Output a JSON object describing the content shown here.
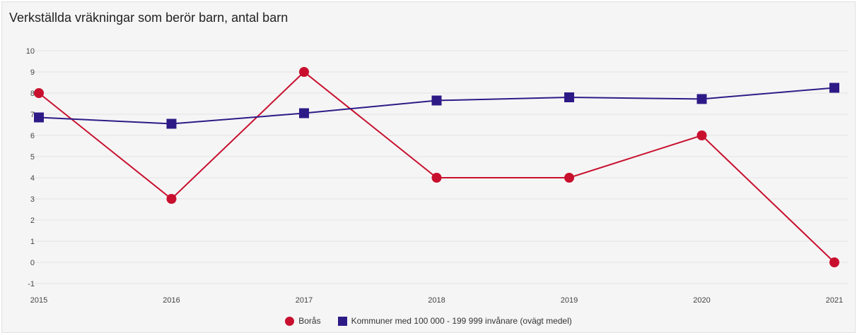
{
  "chart_data": {
    "type": "line",
    "title": "Verkställda vräkningar som berör barn, antal barn",
    "x": [
      "2015",
      "2016",
      "2017",
      "2018",
      "2019",
      "2020",
      "2021"
    ],
    "ylim": [
      -1,
      10
    ],
    "yticks": [
      "10",
      "9",
      "8",
      "7",
      "6",
      "5",
      "4",
      "3",
      "2",
      "1",
      "0",
      "-1"
    ],
    "grid": true,
    "legend_position": "bottom",
    "series": [
      {
        "name": "Borås",
        "values": [
          8,
          3,
          9,
          4,
          4,
          6,
          0
        ],
        "color": "#c8102e",
        "marker": "circle"
      },
      {
        "name": "Kommuner med 100 000 - 199 999 invånare (ovägt medel)",
        "values": [
          6.85,
          6.55,
          7.05,
          7.65,
          7.8,
          7.72,
          8.25
        ],
        "color": "#2e1a87",
        "marker": "square"
      }
    ]
  }
}
